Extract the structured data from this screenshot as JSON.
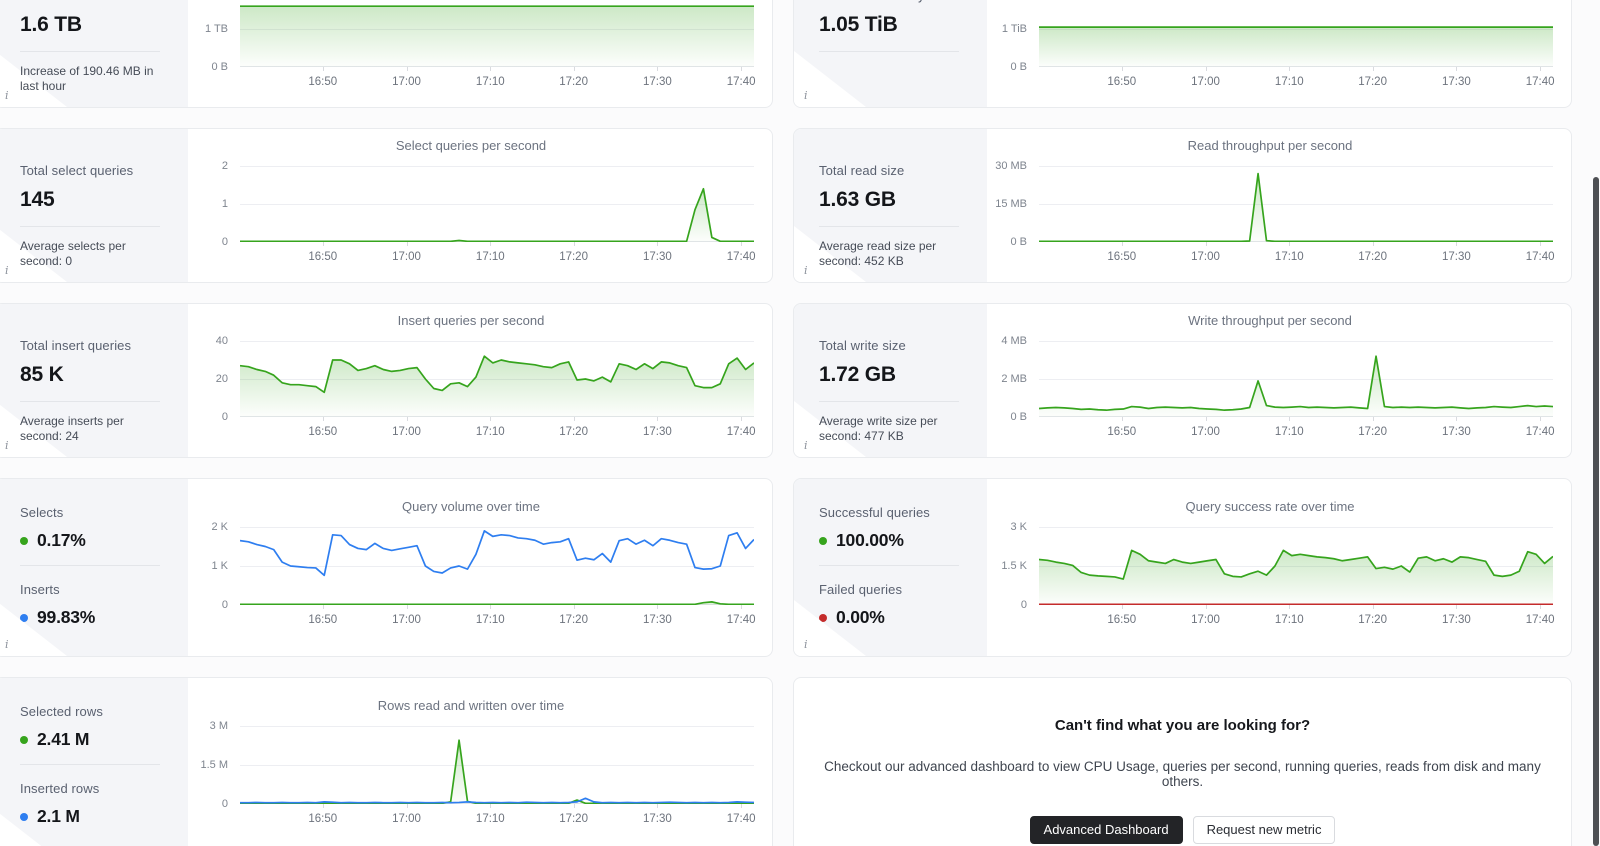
{
  "theme": {
    "green": "#36a41d",
    "blue": "#2e7ef0",
    "red": "#c42b2b",
    "panel_bg": "#f4f5f8"
  },
  "chart_xticks": [
    "16:50",
    "17:00",
    "17:10",
    "17:20",
    "17:30",
    "17:40"
  ],
  "cards": [
    {
      "id": "disk-usage",
      "stat": {
        "entries": [
          {
            "label": "",
            "value": "1.6 TB"
          }
        ],
        "note": "Increase of 190.46 MB in last hour"
      },
      "chart": {
        "type": "line",
        "title": "",
        "yticks": [
          "",
          "1 TB",
          "0 B"
        ],
        "ymax": 2,
        "series": [
          {
            "name": "disk-used",
            "color": "#36a41d",
            "fill": true,
            "const": 1.6,
            "n": 62
          }
        ]
      }
    },
    {
      "id": "allocated-memory",
      "stat": {
        "entries": [
          {
            "label": "Allocated memory",
            "value": "1.05 TiB"
          }
        ],
        "note": ""
      },
      "chart": {
        "type": "line",
        "title": "",
        "yticks": [
          "",
          "1 TiB",
          "0 B"
        ],
        "ymax": 2,
        "series": [
          {
            "name": "memory",
            "color": "#36a41d",
            "fill": true,
            "const": 1.05,
            "n": 62
          }
        ]
      }
    },
    {
      "id": "select-queries",
      "stat": {
        "entries": [
          {
            "label": "Total select queries",
            "value": "145"
          }
        ],
        "note": "Average selects per second: 0"
      },
      "chart": {
        "type": "line",
        "title": "Select queries per second",
        "yticks": [
          "2",
          "1",
          "0"
        ],
        "ymax": 2,
        "series": [
          {
            "name": "selects",
            "color": "#36a41d",
            "fill": true,
            "base": 0,
            "n": 62,
            "points": {
              "26": 0.04,
              "54": 0.85,
              "55": 1.4,
              "56": 0.12
            }
          }
        ]
      }
    },
    {
      "id": "read-size",
      "stat": {
        "entries": [
          {
            "label": "Total read size",
            "value": "1.63 GB"
          }
        ],
        "note": "Average read size per second: 452 KB"
      },
      "chart": {
        "type": "line",
        "title": "Read throughput per second",
        "yticks": [
          "30 MB",
          "15 MB",
          "0 B"
        ],
        "ymax": 30,
        "series": [
          {
            "name": "read",
            "color": "#36a41d",
            "fill": true,
            "base": 0,
            "n": 62,
            "points": {
              "25": 0.4,
              "26": 27,
              "27": 0.5
            }
          }
        ]
      }
    },
    {
      "id": "insert-queries",
      "stat": {
        "entries": [
          {
            "label": "Total insert queries",
            "value": "85 K"
          }
        ],
        "note": "Average inserts per second: 24"
      },
      "chart": {
        "type": "line",
        "title": "Insert queries per second",
        "yticks": [
          "40",
          "20",
          "0"
        ],
        "ymax": 40,
        "series": [
          {
            "name": "inserts",
            "color": "#36a41d",
            "fill": true,
            "values": [
              27,
              26.5,
              25,
              24,
              22,
              18,
              17,
              17,
              16.5,
              16,
              13,
              30,
              30,
              28,
              24.5,
              25.5,
              27,
              25,
              24,
              24.5,
              25.5,
              26,
              20,
              15,
              14,
              17.5,
              18,
              16,
              21,
              32,
              28.5,
              30,
              29,
              28.5,
              28,
              27.5,
              26.5,
              26,
              28,
              29,
              19.5,
              20,
              19,
              21,
              18.5,
              28,
              27,
              25,
              28,
              25.5,
              29,
              28.5,
              27,
              26,
              16.5,
              15.5,
              15.5,
              17.5,
              28,
              31,
              25,
              28.5
            ]
          }
        ]
      }
    },
    {
      "id": "write-size",
      "stat": {
        "entries": [
          {
            "label": "Total write size",
            "value": "1.72 GB"
          }
        ],
        "note": "Average write size per second: 477 KB"
      },
      "chart": {
        "type": "line",
        "title": "Write throughput per second",
        "yticks": [
          "4 MB",
          "2 MB",
          "0 B"
        ],
        "ymax": 4,
        "series": [
          {
            "name": "write",
            "color": "#36a41d",
            "fill": true,
            "values": [
              0.45,
              0.48,
              0.5,
              0.48,
              0.45,
              0.4,
              0.42,
              0.38,
              0.36,
              0.4,
              0.42,
              0.55,
              0.52,
              0.45,
              0.5,
              0.52,
              0.5,
              0.48,
              0.5,
              0.45,
              0.42,
              0.4,
              0.36,
              0.38,
              0.42,
              0.5,
              1.9,
              0.6,
              0.52,
              0.5,
              0.52,
              0.55,
              0.5,
              0.52,
              0.5,
              0.48,
              0.5,
              0.52,
              0.48,
              0.45,
              3.2,
              0.55,
              0.5,
              0.52,
              0.5,
              0.52,
              0.5,
              0.48,
              0.5,
              0.52,
              0.48,
              0.45,
              0.48,
              0.5,
              0.55,
              0.52,
              0.5,
              0.55,
              0.6,
              0.55,
              0.58,
              0.55
            ]
          }
        ]
      }
    },
    {
      "id": "query-volume",
      "stat": {
        "entries": [
          {
            "label": "Selects",
            "value": "0.17%",
            "dot": "#36a41d"
          },
          {
            "label": "Inserts",
            "value": "99.83%",
            "dot": "#2e7ef0"
          }
        ],
        "note": ""
      },
      "chart": {
        "type": "line",
        "title": "Query volume over time",
        "yticks": [
          "2 K",
          "1 K",
          "0"
        ],
        "ymax": 2000,
        "series": [
          {
            "name": "inserts",
            "color": "#2e7ef0",
            "fill": false,
            "values": [
              1650,
              1620,
              1550,
              1500,
              1420,
              1100,
              1000,
              980,
              960,
              950,
              760,
              1800,
              1780,
              1550,
              1450,
              1420,
              1580,
              1450,
              1400,
              1440,
              1480,
              1520,
              1000,
              860,
              820,
              950,
              1000,
              920,
              1300,
              1900,
              1760,
              1800,
              1780,
              1720,
              1700,
              1660,
              1560,
              1600,
              1620,
              1700,
              1150,
              1200,
              1160,
              1320,
              1100,
              1650,
              1700,
              1560,
              1660,
              1520,
              1700,
              1660,
              1600,
              1560,
              960,
              920,
              930,
              1000,
              1780,
              1850,
              1450,
              1680
            ]
          },
          {
            "name": "selects",
            "color": "#36a41d",
            "fill": true,
            "base": 0,
            "n": 62,
            "points": {
              "55": 60,
              "56": 80,
              "57": 30
            }
          }
        ]
      }
    },
    {
      "id": "query-success-rate",
      "stat": {
        "entries": [
          {
            "label": "Successful queries",
            "value": "100.00%",
            "dot": "#36a41d"
          },
          {
            "label": "Failed queries",
            "value": "0.00%",
            "dot": "#c42b2b"
          }
        ],
        "note": ""
      },
      "chart": {
        "type": "line",
        "title": "Query success rate over time",
        "yticks": [
          "3 K",
          "1.5 K",
          "0"
        ],
        "ymax": 3000,
        "series": [
          {
            "name": "successful",
            "color": "#36a41d",
            "fill": true,
            "values": [
              1750,
              1720,
              1650,
              1600,
              1520,
              1250,
              1150,
              1120,
              1100,
              1080,
              1000,
              2100,
              1950,
              1700,
              1650,
              1600,
              1750,
              1650,
              1600,
              1650,
              1700,
              1750,
              1200,
              1100,
              1080,
              1200,
              1300,
              1150,
              1500,
              2100,
              1900,
              1950,
              1900,
              1850,
              1820,
              1780,
              1700,
              1750,
              1800,
              1850,
              1400,
              1450,
              1380,
              1500,
              1270,
              1800,
              1850,
              1700,
              1780,
              1650,
              1850,
              1820,
              1750,
              1680,
              1150,
              1100,
              1150,
              1300,
              2050,
              1950,
              1600,
              1870
            ]
          },
          {
            "name": "failed",
            "color": "#c42b2b",
            "fill": false,
            "const": 0,
            "n": 62
          }
        ]
      }
    },
    {
      "id": "rows-read-written",
      "stat": {
        "entries": [
          {
            "label": "Selected rows",
            "value": "2.41 M",
            "dot": "#36a41d"
          },
          {
            "label": "Inserted rows",
            "value": "2.1 M",
            "dot": "#2e7ef0"
          }
        ],
        "note": ""
      },
      "chart": {
        "type": "line",
        "title": "Rows read and written over time",
        "yticks": [
          "3 M",
          "1.5 M",
          "0"
        ],
        "ymax": 3,
        "series": [
          {
            "name": "read-rows",
            "color": "#36a41d",
            "fill": true,
            "base": 0,
            "n": 62,
            "points": {
              "25": 0.08,
              "26": 2.45,
              "27": 0.1,
              "40": 0.15
            }
          },
          {
            "name": "written-rows",
            "color": "#2e7ef0",
            "fill": false,
            "values": [
              0.05,
              0.05,
              0.06,
              0.05,
              0.05,
              0.06,
              0.05,
              0.05,
              0.06,
              0.05,
              0.08,
              0.07,
              0.05,
              0.06,
              0.05,
              0.05,
              0.06,
              0.05,
              0.05,
              0.06,
              0.05,
              0.06,
              0.05,
              0.05,
              0.06,
              0.05,
              0.06,
              0.08,
              0.06,
              0.05,
              0.06,
              0.05,
              0.06,
              0.05,
              0.07,
              0.06,
              0.05,
              0.06,
              0.05,
              0.06,
              0.08,
              0.22,
              0.08,
              0.05,
              0.06,
              0.05,
              0.06,
              0.05,
              0.06,
              0.05,
              0.06,
              0.07,
              0.06,
              0.05,
              0.06,
              0.05,
              0.06,
              0.05,
              0.06,
              0.08,
              0.07,
              0.06
            ]
          }
        ]
      }
    },
    {
      "id": "promo",
      "title": "Can't find what you are looking for?",
      "body": "Checkout our advanced dashboard to view CPU Usage, queries per second, running queries, reads from disk and many others.",
      "buttons": [
        {
          "label": "Advanced Dashboard",
          "style": "dark"
        },
        {
          "label": "Request new metric",
          "style": "light"
        }
      ]
    }
  ]
}
